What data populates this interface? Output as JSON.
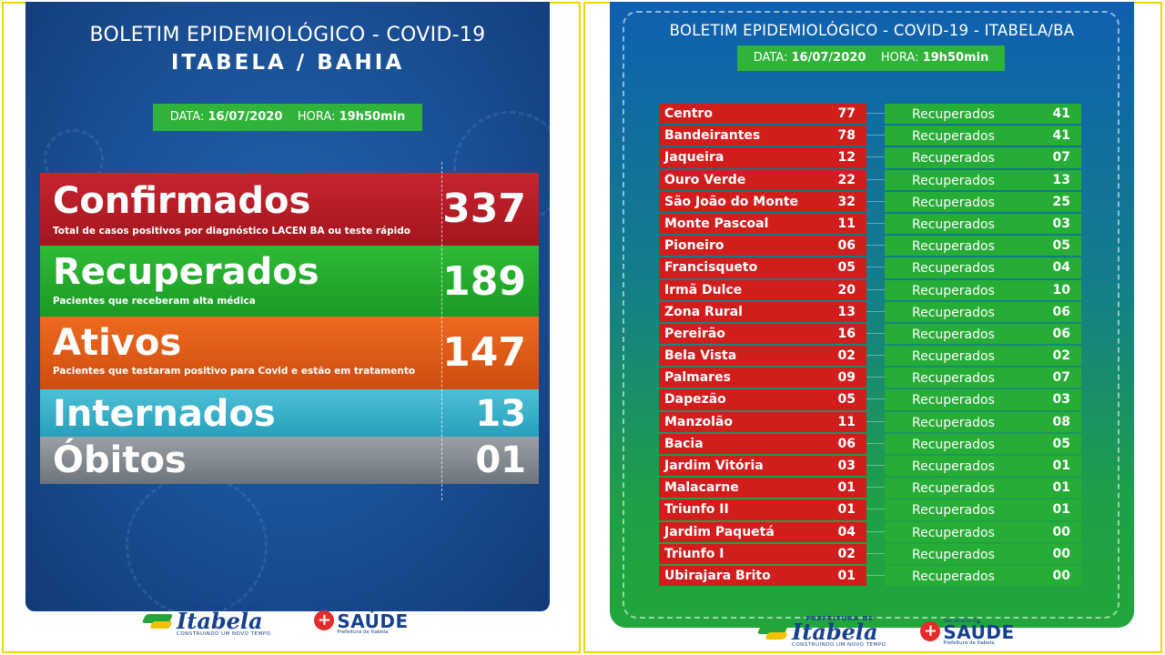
{
  "left": {
    "title_line1": "BOLETIM EPIDEMIOLÓGICO - COVID-19",
    "title_line2": "ITABELA / BAHIA",
    "date_label": "DATA:",
    "date_value": "16/07/2020",
    "time_label": "HORA:",
    "time_value": "19h50min",
    "stats": {
      "confirmed": {
        "label": "Confirmados",
        "desc": "Total de casos positivos por diagnóstico LACEN BA ou teste rápido",
        "value": "337",
        "color": "#b41c24"
      },
      "recovered": {
        "label": "Recuperados",
        "desc": "Pacientes que receberam alta médica",
        "value": "189",
        "color": "#23a82d"
      },
      "active": {
        "label": "Ativos",
        "desc": "Pacientes que testaram positivo para Covid e estão em tratamento",
        "value": "147",
        "color": "#e05a18"
      },
      "hospitalized": {
        "label": "Internados",
        "value": "13",
        "color": "#38afc8"
      },
      "deaths": {
        "label": "Óbitos",
        "value": "01",
        "color": "#868c92"
      }
    }
  },
  "right": {
    "title": "BOLETIM EPIDEMIOLÓGICO - COVID-19 - ITABELA/BA",
    "date_label": "DATA:",
    "date_value": "16/07/2020",
    "time_label": "HORA:",
    "time_value": "19h50min",
    "recovered_label": "Recuperados",
    "neighborhoods": [
      {
        "name": "Centro",
        "confirmed": "77",
        "recovered": "41"
      },
      {
        "name": "Bandeirantes",
        "confirmed": "78",
        "recovered": "41"
      },
      {
        "name": "Jaqueira",
        "confirmed": "12",
        "recovered": "07"
      },
      {
        "name": "Ouro Verde",
        "confirmed": "22",
        "recovered": "13"
      },
      {
        "name": "São João do Monte",
        "confirmed": "32",
        "recovered": "25"
      },
      {
        "name": "Monte Pascoal",
        "confirmed": "11",
        "recovered": "03"
      },
      {
        "name": "Pioneiro",
        "confirmed": "06",
        "recovered": "05"
      },
      {
        "name": "Francisqueto",
        "confirmed": "05",
        "recovered": "04"
      },
      {
        "name": "Irmã Dulce",
        "confirmed": "20",
        "recovered": "10"
      },
      {
        "name": "Zona Rural",
        "confirmed": "13",
        "recovered": "06"
      },
      {
        "name": "Pereirão",
        "confirmed": "16",
        "recovered": "06"
      },
      {
        "name": "Bela Vista",
        "confirmed": "02",
        "recovered": "02"
      },
      {
        "name": "Palmares",
        "confirmed": "09",
        "recovered": "07"
      },
      {
        "name": "Dapezão",
        "confirmed": "05",
        "recovered": "03"
      },
      {
        "name": "Manzolão",
        "confirmed": "11",
        "recovered": "08"
      },
      {
        "name": "Bacia",
        "confirmed": "06",
        "recovered": "05"
      },
      {
        "name": "Jardim Vitória",
        "confirmed": "03",
        "recovered": "01"
      },
      {
        "name": "Malacarne",
        "confirmed": "01",
        "recovered": "01"
      },
      {
        "name": "Triunfo II",
        "confirmed": "01",
        "recovered": "01"
      },
      {
        "name": "Jardim Paquetá",
        "confirmed": "04",
        "recovered": "00"
      },
      {
        "name": "Triunfo I",
        "confirmed": "02",
        "recovered": "00"
      },
      {
        "name": "Ubirajara Brito",
        "confirmed": "01",
        "recovered": "00"
      }
    ]
  },
  "logos": {
    "itabela_top": "PREFEITURA DE",
    "itabela_name": "Itabela",
    "itabela_tagline": "CONSTRUINDO UM NOVO TEMPO.",
    "saude_top": "Secretaria de",
    "saude_name": "SAÚDE",
    "saude_bottom": "Prefeitura de Itabela"
  },
  "colors": {
    "frame_border": "#f2d400",
    "red_cell": "#d21d1d",
    "green_cell": "#26ad36",
    "date_badge": "#2fb338"
  }
}
